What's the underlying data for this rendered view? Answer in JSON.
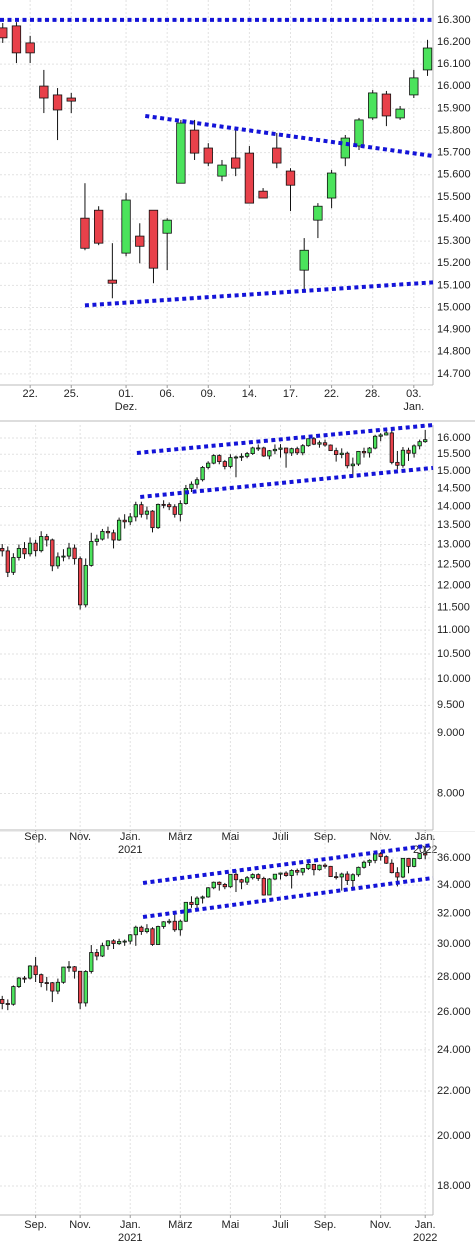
{
  "chart_data": [
    {
      "type": "candlestick",
      "log": false,
      "grid": true,
      "xlim": [
        -0.2,
        31.4
      ],
      "ylim": [
        14650,
        16390
      ],
      "yticks": [
        {
          "value": 16300,
          "label": "16.300"
        },
        {
          "value": 16200,
          "label": "16.200"
        },
        {
          "value": 16100,
          "label": "16.100"
        },
        {
          "value": 16000,
          "label": "16.000"
        },
        {
          "value": 15900,
          "label": "15.900"
        },
        {
          "value": 15800,
          "label": "15.800"
        },
        {
          "value": 15700,
          "label": "15.700"
        },
        {
          "value": 15600,
          "label": "15.600"
        },
        {
          "value": 15500,
          "label": "15.500"
        },
        {
          "value": 15400,
          "label": "15.400"
        },
        {
          "value": 15300,
          "label": "15.300"
        },
        {
          "value": 15200,
          "label": "15.200"
        },
        {
          "value": 15100,
          "label": "15.100"
        },
        {
          "value": 15000,
          "label": "15.000"
        },
        {
          "value": 14900,
          "label": "14.900"
        },
        {
          "value": 14800,
          "label": "14.800"
        },
        {
          "value": 14700,
          "label": "14.700"
        }
      ],
      "xticks": [
        {
          "value": 2,
          "label": "22."
        },
        {
          "value": 5,
          "label": "25."
        },
        {
          "value": 9,
          "label": "01."
        },
        {
          "value": 12,
          "label": "06."
        },
        {
          "value": 15,
          "label": "09."
        },
        {
          "value": 18,
          "label": "14."
        },
        {
          "value": 21,
          "label": "17."
        },
        {
          "value": 24,
          "label": "22."
        },
        {
          "value": 27,
          "label": "28."
        },
        {
          "value": 30,
          "label": "03."
        }
      ],
      "xticks2": [
        {
          "value": 9,
          "label": "Dez."
        },
        {
          "value": 30,
          "label": "Jan."
        }
      ],
      "up_color": "#4be35c",
      "down_color": "#e8414a",
      "trend_color": "#1414d8",
      "open": [
        16264,
        16273,
        16196,
        16001,
        15961,
        15947,
        15404,
        15440,
        15124,
        15246,
        15323,
        15440,
        15336,
        15562,
        15802,
        15721,
        15594,
        15676,
        15698,
        15526,
        15721,
        15617,
        15169,
        15395,
        15495,
        15676,
        15730,
        15857,
        15965,
        15857,
        15961,
        16074
      ],
      "high": [
        16286,
        16290,
        16228,
        16074,
        15992,
        15970,
        15562,
        15458,
        15291,
        15517,
        15381,
        15440,
        15404,
        15848,
        15848,
        15743,
        15667,
        15811,
        15730,
        15540,
        15789,
        15630,
        15314,
        15472,
        15622,
        15780,
        15857,
        15983,
        15979,
        15911,
        16074,
        16210
      ],
      "low": [
        16196,
        16105,
        16105,
        15879,
        15757,
        15879,
        15259,
        15282,
        15042,
        15232,
        15200,
        15110,
        15169,
        15562,
        15667,
        15639,
        15571,
        15594,
        15472,
        15495,
        15630,
        15436,
        15078,
        15314,
        15449,
        15639,
        15712,
        15848,
        15820,
        15848,
        15947,
        16047
      ],
      "close": [
        16219,
        16151,
        16151,
        15947,
        15893,
        15933,
        15268,
        15291,
        15110,
        15486,
        15277,
        15178,
        15395,
        15834,
        15698,
        15653,
        15644,
        15630,
        15472,
        15495,
        15653,
        15553,
        15259,
        15458,
        15608,
        15766,
        15848,
        15970,
        15866,
        15897,
        16038,
        16173
      ],
      "trendlines": [
        {
          "x": [
            -0.2,
            31.4
          ],
          "y": [
            16300,
            16300
          ]
        },
        {
          "x": [
            10.4,
            31.4
          ],
          "y": [
            15866,
            15685
          ]
        },
        {
          "x": [
            6,
            31.4
          ],
          "y": [
            15010,
            15114
          ]
        }
      ]
    },
    {
      "type": "candlestick",
      "log": true,
      "grid": true,
      "xlim": [
        -0.4,
        77.4
      ],
      "ylim": [
        7450,
        16410
      ],
      "yticks": [
        {
          "value": 16000,
          "label": "16.000"
        },
        {
          "value": 15500,
          "label": "15.500"
        },
        {
          "value": 15000,
          "label": "15.000"
        },
        {
          "value": 14500,
          "label": "14.500"
        },
        {
          "value": 14000,
          "label": "14.000"
        },
        {
          "value": 13500,
          "label": "13.500"
        },
        {
          "value": 13000,
          "label": "13.000"
        },
        {
          "value": 12500,
          "label": "12.500"
        },
        {
          "value": 12000,
          "label": "12.000"
        },
        {
          "value": 11500,
          "label": "11.500"
        },
        {
          "value": 11000,
          "label": "11.000"
        },
        {
          "value": 10500,
          "label": "10.500"
        },
        {
          "value": 10000,
          "label": "10.000"
        },
        {
          "value": 9500,
          "label": "9.500"
        },
        {
          "value": 9000,
          "label": "9.000"
        },
        {
          "value": 8000,
          "label": "8.000"
        }
      ],
      "xticks": [
        {
          "value": 6,
          "label": "Sep."
        },
        {
          "value": 14,
          "label": "Nov."
        },
        {
          "value": 23,
          "label": "Jan."
        },
        {
          "value": 32,
          "label": "März"
        },
        {
          "value": 41,
          "label": "Mai"
        },
        {
          "value": 50,
          "label": "Juli"
        },
        {
          "value": 58,
          "label": "Sep."
        },
        {
          "value": 68,
          "label": "Nov."
        },
        {
          "value": 76,
          "label": "Jan."
        }
      ],
      "xticks2": [
        {
          "value": 23,
          "label": "2021"
        },
        {
          "value": 76,
          "label": "2022"
        }
      ],
      "up_color": "#4be35c",
      "down_color": "#e8414a",
      "trend_color": "#1414d8",
      "open": [
        12900,
        12838,
        12313,
        12674,
        12901,
        12765,
        13033,
        12843,
        13203,
        13116,
        12469,
        12689,
        12709,
        12909,
        12645,
        11556,
        12480,
        13077,
        13137,
        13336,
        13299,
        13114,
        13630,
        13587,
        13719,
        14049,
        13788,
        13874,
        13433,
        14057,
        14050,
        13993,
        13786,
        14080,
        14502,
        14621,
        14749,
        15107,
        15234,
        15460,
        15280,
        15136,
        15400,
        15417,
        15438,
        15520,
        15693,
        15693,
        15448,
        15607,
        15650,
        15689,
        15540,
        15669,
        15544,
        15761,
        15977,
        15808,
        15852,
        15781,
        15610,
        15490,
        15532,
        15156,
        15206,
        15587,
        15543,
        15688,
        16054,
        16094,
        16159,
        15257,
        15170,
        15622,
        15531,
        15756,
        15885
      ],
      "high": [
        13010,
        12950,
        12780,
        13000,
        13060,
        13180,
        13120,
        13340,
        13270,
        13150,
        12800,
        12880,
        13040,
        13000,
        12700,
        12650,
        13300,
        13250,
        13400,
        13460,
        13380,
        13700,
        13790,
        13820,
        14130,
        14130,
        14000,
        13900,
        14080,
        14170,
        14110,
        14060,
        14170,
        14600,
        14700,
        14820,
        15150,
        15290,
        15500,
        15500,
        15330,
        15500,
        15460,
        15530,
        15570,
        15730,
        15800,
        15730,
        15630,
        15800,
        15810,
        15700,
        15700,
        15730,
        15810,
        15980,
        16030,
        15920,
        15950,
        15800,
        15700,
        15680,
        15580,
        15400,
        15600,
        15700,
        15720,
        16100,
        16150,
        16290,
        16250,
        15600,
        15720,
        15700,
        15800,
        15950,
        16250
      ],
      "low": [
        12700,
        12200,
        12250,
        12600,
        12640,
        12700,
        12700,
        12800,
        12950,
        12340,
        12400,
        12580,
        12630,
        12500,
        11450,
        11500,
        12450,
        12970,
        13100,
        13150,
        12900,
        13090,
        13410,
        13500,
        13600,
        13700,
        13650,
        13310,
        13400,
        13950,
        13900,
        13700,
        13600,
        14050,
        14400,
        14500,
        14700,
        15050,
        15200,
        15200,
        15050,
        15080,
        14820,
        15300,
        15380,
        15480,
        15600,
        15420,
        15350,
        15500,
        15400,
        15100,
        15450,
        15480,
        15470,
        15730,
        15780,
        15700,
        15730,
        15600,
        15280,
        15380,
        15080,
        14820,
        15150,
        15400,
        15400,
        15650,
        15900,
        16080,
        15200,
        15050,
        15100,
        15300,
        15400,
        15650,
        15850
      ],
      "close": [
        12838,
        12313,
        12674,
        12901,
        12765,
        13033,
        12843,
        13203,
        13116,
        12469,
        12689,
        12709,
        12909,
        12645,
        11556,
        12480,
        13077,
        13137,
        13336,
        13299,
        13114,
        13630,
        13587,
        13719,
        14049,
        13788,
        13874,
        13433,
        14057,
        14050,
        13993,
        13786,
        14080,
        14502,
        14621,
        14749,
        15107,
        15234,
        15460,
        15280,
        15136,
        15400,
        15417,
        15438,
        15520,
        15693,
        15693,
        15448,
        15607,
        15650,
        15689,
        15540,
        15669,
        15544,
        15761,
        15977,
        15808,
        15852,
        15781,
        15610,
        15490,
        15532,
        15156,
        15206,
        15587,
        15543,
        15688,
        16054,
        16094,
        16159,
        15257,
        15170,
        15622,
        15531,
        15756,
        15885,
        15947
      ],
      "trendlines": [
        {
          "x": [
            24.2,
            77.4
          ],
          "y": [
            15539,
            16410
          ]
        },
        {
          "x": [
            24.8,
            77.4
          ],
          "y": [
            14262,
            15093
          ]
        }
      ]
    },
    {
      "type": "candlestick",
      "log": true,
      "grid": true,
      "xlim": [
        -0.4,
        77.4
      ],
      "ylim": [
        16930,
        37790
      ],
      "yticks": [
        {
          "value": 36000,
          "label": "36.000"
        },
        {
          "value": 34000,
          "label": "34.000"
        },
        {
          "value": 32000,
          "label": "32.000"
        },
        {
          "value": 30000,
          "label": "30.000"
        },
        {
          "value": 28000,
          "label": "28.000"
        },
        {
          "value": 26000,
          "label": "26.000"
        },
        {
          "value": 24000,
          "label": "24.000"
        },
        {
          "value": 22000,
          "label": "22.000"
        },
        {
          "value": 20000,
          "label": "20.000"
        },
        {
          "value": 18000,
          "label": "18.000"
        }
      ],
      "xticks": [
        {
          "value": 6,
          "label": "Sep."
        },
        {
          "value": 14,
          "label": "Nov."
        },
        {
          "value": 23,
          "label": "Jan."
        },
        {
          "value": 32,
          "label": "März"
        },
        {
          "value": 41,
          "label": "Mai"
        },
        {
          "value": 50,
          "label": "Juli"
        },
        {
          "value": 58,
          "label": "Sep."
        },
        {
          "value": 68,
          "label": "Nov."
        },
        {
          "value": 76,
          "label": "Jan."
        }
      ],
      "xticks2": [
        {
          "value": 23,
          "label": "2021"
        },
        {
          "value": 76,
          "label": "2022"
        }
      ],
      "up_color": "#4be35c",
      "down_color": "#e8414a",
      "trend_color": "#1414d8",
      "open": [
        26700,
        26470,
        26428,
        27433,
        27931,
        27930,
        28654,
        28133,
        27666,
        27657,
        27174,
        27683,
        28587,
        28606,
        28336,
        26502,
        28323,
        29480,
        29263,
        29910,
        30218,
        30046,
        30179,
        30200,
        30606,
        31098,
        30814,
        30997,
        29983,
        31148,
        31458,
        31494,
        30932,
        31496,
        32779,
        32628,
        33073,
        33153,
        33801,
        34200,
        34043,
        33875,
        34778,
        34382,
        34208,
        34529,
        34756,
        34480,
        33290,
        34434,
        34786,
        34870,
        34688,
        35062,
        34935,
        35209,
        35515,
        35120,
        35456,
        35369,
        34608,
        34584,
        34798,
        34327,
        34746,
        35295,
        35677,
        35820,
        36328,
        36100,
        35602,
        34899,
        34580,
        35971,
        35365,
        35951,
        36338
      ],
      "high": [
        26900,
        26700,
        27500,
        28000,
        28050,
        28700,
        29200,
        28200,
        28000,
        27700,
        27900,
        28600,
        28950,
        28650,
        28350,
        28400,
        29950,
        29700,
        30100,
        30250,
        30320,
        30350,
        30300,
        30650,
        31200,
        31200,
        31300,
        31100,
        31200,
        31500,
        31650,
        31950,
        31600,
        32800,
        33200,
        33200,
        33250,
        33850,
        34250,
        34260,
        34150,
        34800,
        35100,
        34450,
        34650,
        34850,
        34850,
        34600,
        34500,
        34800,
        34900,
        35000,
        35150,
        35200,
        35250,
        35600,
        35550,
        35500,
        35600,
        35400,
        34950,
        34900,
        35000,
        34850,
        35350,
        35800,
        35900,
        36500,
        36450,
        36200,
        35900,
        35300,
        36000,
        36000,
        36000,
        36400,
        36950
      ],
      "low": [
        26150,
        26100,
        26350,
        27350,
        27650,
        27850,
        27700,
        27400,
        27200,
        26550,
        27000,
        27600,
        28300,
        27900,
        26150,
        26300,
        28200,
        29000,
        29200,
        29650,
        29700,
        29950,
        29900,
        30000,
        29900,
        30600,
        30700,
        29900,
        29950,
        31000,
        31300,
        30800,
        30550,
        31450,
        32400,
        32300,
        32700,
        33100,
        33700,
        33600,
        33700,
        33800,
        33500,
        33700,
        34000,
        34400,
        34300,
        33250,
        33300,
        34350,
        34400,
        34600,
        33750,
        34700,
        34700,
        35100,
        34700,
        35050,
        35200,
        34600,
        34400,
        33600,
        34000,
        33800,
        34600,
        35200,
        35400,
        35600,
        35800,
        35550,
        34850,
        33900,
        34500,
        34850,
        35300,
        35900,
        35900
      ],
      "close": [
        26470,
        26428,
        27433,
        27931,
        27930,
        28654,
        28133,
        27666,
        27657,
        27174,
        27683,
        28587,
        28606,
        28336,
        26502,
        28323,
        29480,
        29263,
        29910,
        30218,
        30046,
        30179,
        30200,
        30606,
        31098,
        30814,
        30997,
        29983,
        31148,
        31458,
        31494,
        30932,
        31496,
        32779,
        32628,
        33073,
        33153,
        33801,
        34200,
        34043,
        33875,
        34778,
        34382,
        34208,
        34529,
        34756,
        34480,
        33290,
        34434,
        34786,
        34870,
        34688,
        35062,
        34935,
        35209,
        35515,
        35120,
        35456,
        35369,
        34608,
        34584,
        34798,
        34327,
        34746,
        35295,
        35677,
        35820,
        36328,
        36100,
        35602,
        34899,
        34580,
        35971,
        35365,
        35951,
        36338,
        36232
      ],
      "trendlines": [
        {
          "x": [
            25.3,
            77.4
          ],
          "y": [
            34147,
            37003
          ]
        },
        {
          "x": [
            25.3,
            77.4
          ],
          "y": [
            31779,
            34510
          ]
        }
      ]
    }
  ]
}
